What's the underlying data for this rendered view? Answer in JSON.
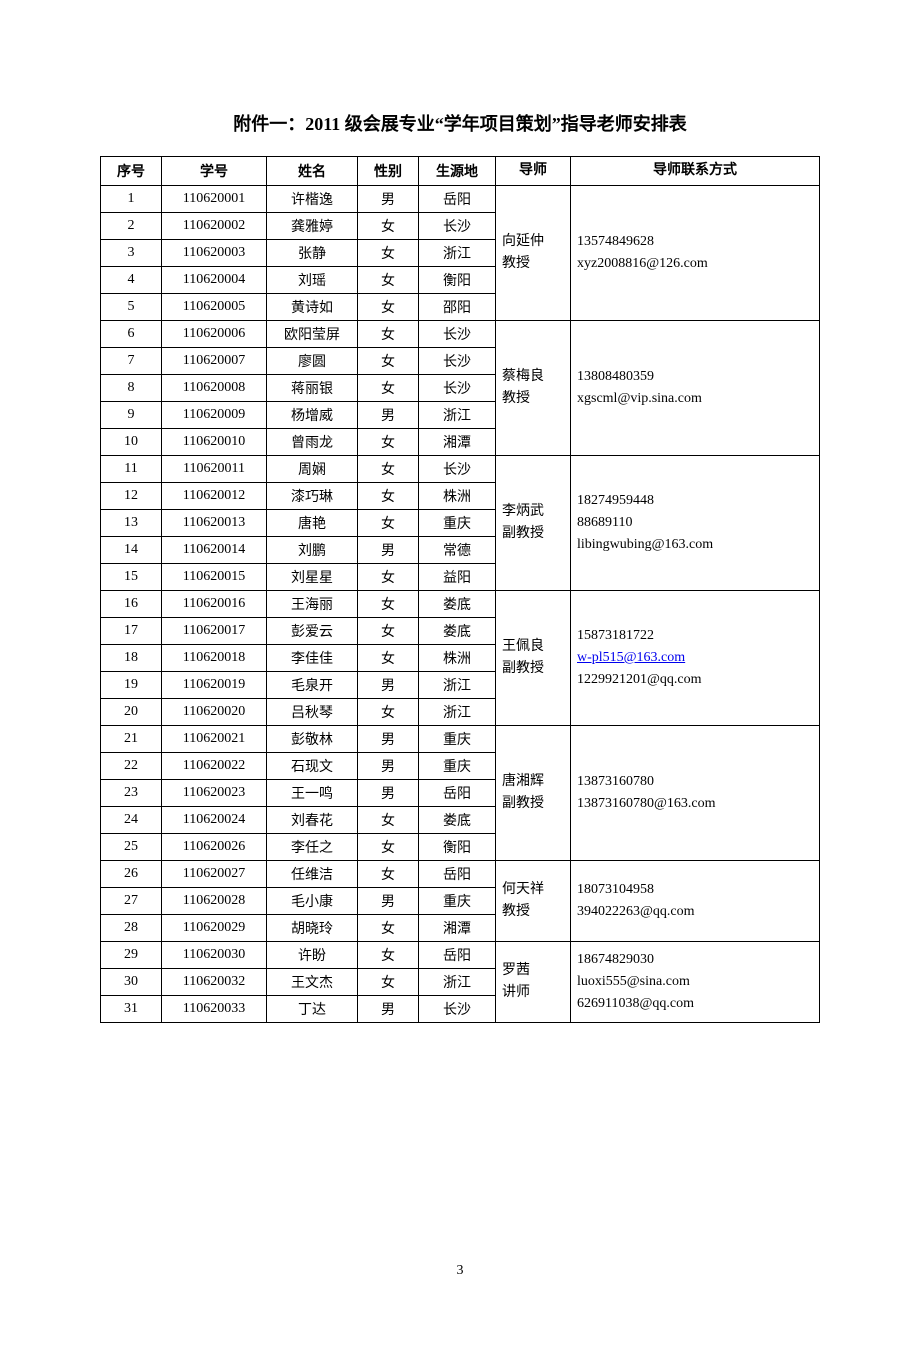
{
  "title": "附件一：2011 级会展专业“学年项目策划”指导老师安排表",
  "pageNumber": "3",
  "columns": [
    "序号",
    "学号",
    "姓名",
    "性别",
    "生源地",
    "导师",
    "导师联系方式"
  ],
  "groups": [
    {
      "advisor": "向延仲\n教授",
      "contact": [
        {
          "text": "13574849628"
        },
        {
          "text": "xyz2008816@126.com"
        }
      ],
      "rows": [
        {
          "seq": "1",
          "id": "110620001",
          "name": "许楷逸",
          "gender": "男",
          "origin": "岳阳"
        },
        {
          "seq": "2",
          "id": "110620002",
          "name": "龚雅婷",
          "gender": "女",
          "origin": "长沙"
        },
        {
          "seq": "3",
          "id": "110620003",
          "name": "张静",
          "gender": "女",
          "origin": "浙江"
        },
        {
          "seq": "4",
          "id": "110620004",
          "name": "刘瑶",
          "gender": "女",
          "origin": "衡阳"
        },
        {
          "seq": "5",
          "id": "110620005",
          "name": "黄诗如",
          "gender": "女",
          "origin": "邵阳"
        }
      ]
    },
    {
      "advisor": "蔡梅良\n教授",
      "contact": [
        {
          "text": "13808480359"
        },
        {
          "text": "xgscml@vip.sina.com"
        }
      ],
      "rows": [
        {
          "seq": "6",
          "id": "110620006",
          "name": "欧阳莹屏",
          "gender": "女",
          "origin": "长沙"
        },
        {
          "seq": "7",
          "id": "110620007",
          "name": "廖圆",
          "gender": "女",
          "origin": "长沙"
        },
        {
          "seq": "8",
          "id": "110620008",
          "name": "蒋丽银",
          "gender": "女",
          "origin": "长沙"
        },
        {
          "seq": "9",
          "id": "110620009",
          "name": "杨增威",
          "gender": "男",
          "origin": "浙江"
        },
        {
          "seq": "10",
          "id": "110620010",
          "name": "曾雨龙",
          "gender": "女",
          "origin": "湘潭"
        }
      ]
    },
    {
      "advisor": "李炳武\n副教授",
      "contact": [
        {
          "text": "18274959448"
        },
        {
          "text": "88689110"
        },
        {
          "text": "libingwubing@163.com"
        }
      ],
      "rows": [
        {
          "seq": "11",
          "id": "110620011",
          "name": "周娴",
          "gender": "女",
          "origin": "长沙"
        },
        {
          "seq": "12",
          "id": "110620012",
          "name": "漆巧琳",
          "gender": "女",
          "origin": "株洲"
        },
        {
          "seq": "13",
          "id": "110620013",
          "name": "唐艳",
          "gender": "女",
          "origin": "重庆"
        },
        {
          "seq": "14",
          "id": "110620014",
          "name": "刘鹏",
          "gender": "男",
          "origin": "常德"
        },
        {
          "seq": "15",
          "id": "110620015",
          "name": "刘星星",
          "gender": "女",
          "origin": "益阳"
        }
      ]
    },
    {
      "advisor": "王佩良\n副教授",
      "contact": [
        {
          "text": "15873181722"
        },
        {
          "text": "w-pl515@163.com",
          "link": true
        },
        {
          "text": "1229921201@qq.com"
        }
      ],
      "rows": [
        {
          "seq": "16",
          "id": "110620016",
          "name": "王海丽",
          "gender": "女",
          "origin": "娄底"
        },
        {
          "seq": "17",
          "id": "110620017",
          "name": "彭爱云",
          "gender": "女",
          "origin": "娄底"
        },
        {
          "seq": "18",
          "id": "110620018",
          "name": "李佳佳",
          "gender": "女",
          "origin": "株洲"
        },
        {
          "seq": "19",
          "id": "110620019",
          "name": "毛泉开",
          "gender": "男",
          "origin": "浙江"
        },
        {
          "seq": "20",
          "id": "110620020",
          "name": "吕秋琴",
          "gender": "女",
          "origin": "浙江"
        }
      ]
    },
    {
      "advisor": "唐湘辉\n副教授",
      "contact": [
        {
          "text": "13873160780"
        },
        {
          "text": "13873160780@163.com"
        }
      ],
      "rows": [
        {
          "seq": "21",
          "id": "110620021",
          "name": "彭敬林",
          "gender": "男",
          "origin": "重庆"
        },
        {
          "seq": "22",
          "id": "110620022",
          "name": "石现文",
          "gender": "男",
          "origin": "重庆"
        },
        {
          "seq": "23",
          "id": "110620023",
          "name": "王一鸣",
          "gender": "男",
          "origin": "岳阳"
        },
        {
          "seq": "24",
          "id": "110620024",
          "name": "刘春花",
          "gender": "女",
          "origin": "娄底"
        },
        {
          "seq": "25",
          "id": "110620026",
          "name": "李任之",
          "gender": "女",
          "origin": "衡阳"
        }
      ]
    },
    {
      "advisor": "何天祥\n教授",
      "contact": [
        {
          "text": "18073104958"
        },
        {
          "text": "394022263@qq.com"
        }
      ],
      "rows": [
        {
          "seq": "26",
          "id": "110620027",
          "name": "任维洁",
          "gender": "女",
          "origin": "岳阳"
        },
        {
          "seq": "27",
          "id": "110620028",
          "name": "毛小康",
          "gender": "男",
          "origin": "重庆"
        },
        {
          "seq": "28",
          "id": "110620029",
          "name": "胡晓玲",
          "gender": "女",
          "origin": "湘潭"
        }
      ]
    },
    {
      "advisor": "罗茜\n讲师",
      "contact": [
        {
          "text": "18674829030"
        },
        {
          "text": "luoxi555@sina.com"
        },
        {
          "text": "626911038@qq.com"
        }
      ],
      "rows": [
        {
          "seq": "29",
          "id": "110620030",
          "name": "许盼",
          "gender": "女",
          "origin": "岳阳"
        },
        {
          "seq": "30",
          "id": "110620032",
          "name": "王文杰",
          "gender": "女",
          "origin": "浙江"
        },
        {
          "seq": "31",
          "id": "110620033",
          "name": "丁达",
          "gender": "男",
          "origin": "长沙"
        }
      ]
    }
  ]
}
